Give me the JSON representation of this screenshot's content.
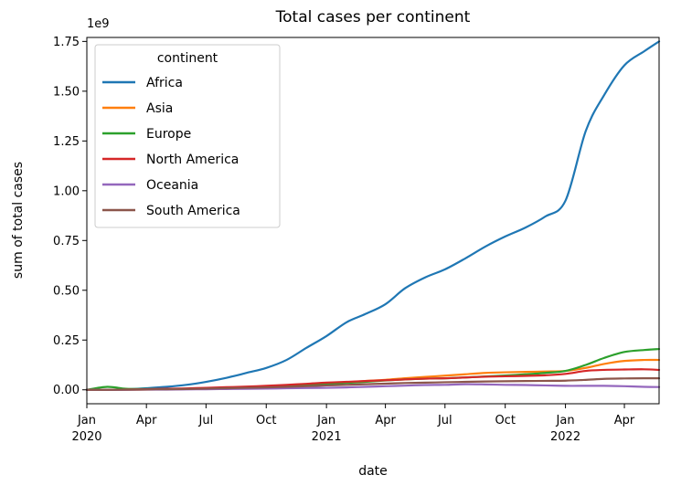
{
  "chart_data": {
    "type": "line",
    "title": "Total cases per continent",
    "xlabel": "date",
    "ylabel": "sum of total cases",
    "y_offset_text": "1e9",
    "ylim": [
      -0.07,
      1.77
    ],
    "y_ticks": [
      0.0,
      0.25,
      0.5,
      0.75,
      1.0,
      1.25,
      1.5,
      1.75
    ],
    "y_tick_labels": [
      "0.00",
      "0.25",
      "0.50",
      "0.75",
      "1.00",
      "1.25",
      "1.50",
      "1.75"
    ],
    "xlim": [
      "2020-01-01",
      "2022-05-24"
    ],
    "x_ticks": [
      {
        "date": "2020-01-01",
        "label": "Jan",
        "year": "2020"
      },
      {
        "date": "2020-04-01",
        "label": "Apr",
        "year": ""
      },
      {
        "date": "2020-07-01",
        "label": "Jul",
        "year": ""
      },
      {
        "date": "2020-10-01",
        "label": "Oct",
        "year": ""
      },
      {
        "date": "2021-01-01",
        "label": "Jan",
        "year": "2021"
      },
      {
        "date": "2021-04-01",
        "label": "Apr",
        "year": ""
      },
      {
        "date": "2021-07-01",
        "label": "Jul",
        "year": ""
      },
      {
        "date": "2021-10-01",
        "label": "Oct",
        "year": ""
      },
      {
        "date": "2022-01-01",
        "label": "Jan",
        "year": "2022"
      },
      {
        "date": "2022-04-01",
        "label": "Apr",
        "year": ""
      }
    ],
    "legend": {
      "title": "continent",
      "placement": "upper-left"
    },
    "grid": false,
    "x": [
      "2020-01-01",
      "2020-02-01",
      "2020-03-01",
      "2020-04-01",
      "2020-05-01",
      "2020-06-01",
      "2020-07-01",
      "2020-08-01",
      "2020-09-01",
      "2020-10-01",
      "2020-11-01",
      "2020-12-01",
      "2021-01-01",
      "2021-02-01",
      "2021-03-01",
      "2021-04-01",
      "2021-05-01",
      "2021-06-01",
      "2021-07-01",
      "2021-08-01",
      "2021-09-01",
      "2021-10-01",
      "2021-11-01",
      "2021-12-01",
      "2022-01-01",
      "2022-02-01",
      "2022-03-01",
      "2022-04-01",
      "2022-05-01",
      "2022-05-24"
    ],
    "series": [
      {
        "name": "Africa",
        "color": "#1f77b4",
        "values": [
          0.0,
          0.0,
          0.002,
          0.008,
          0.015,
          0.025,
          0.04,
          0.06,
          0.085,
          0.11,
          0.15,
          0.21,
          0.27,
          0.34,
          0.38,
          0.43,
          0.51,
          0.565,
          0.605,
          0.66,
          0.72,
          0.77,
          0.815,
          0.87,
          0.95,
          1.3,
          1.48,
          1.63,
          1.7,
          1.75
        ]
      },
      {
        "name": "Asia",
        "color": "#ff7f0e",
        "values": [
          0.0,
          0.0,
          0.0,
          0.001,
          0.002,
          0.004,
          0.006,
          0.009,
          0.012,
          0.016,
          0.02,
          0.026,
          0.033,
          0.038,
          0.044,
          0.05,
          0.058,
          0.065,
          0.071,
          0.078,
          0.085,
          0.088,
          0.09,
          0.092,
          0.095,
          0.11,
          0.13,
          0.145,
          0.15,
          0.15
        ]
      },
      {
        "name": "Europe",
        "color": "#2ca02c",
        "values": [
          0.0,
          0.015,
          0.005,
          0.004,
          0.004,
          0.005,
          0.006,
          0.007,
          0.008,
          0.012,
          0.018,
          0.025,
          0.03,
          0.035,
          0.04,
          0.047,
          0.052,
          0.056,
          0.058,
          0.062,
          0.067,
          0.072,
          0.078,
          0.085,
          0.095,
          0.125,
          0.16,
          0.19,
          0.2,
          0.205
        ]
      },
      {
        "name": "North America",
        "color": "#d62728",
        "values": [
          0.0,
          0.0,
          0.001,
          0.003,
          0.005,
          0.007,
          0.01,
          0.013,
          0.016,
          0.02,
          0.025,
          0.03,
          0.036,
          0.04,
          0.044,
          0.048,
          0.052,
          0.056,
          0.058,
          0.062,
          0.066,
          0.068,
          0.07,
          0.073,
          0.08,
          0.095,
          0.1,
          0.102,
          0.103,
          0.1
        ]
      },
      {
        "name": "Oceania",
        "color": "#9467bd",
        "values": [
          0.0,
          0.0,
          0.0,
          0.001,
          0.001,
          0.002,
          0.003,
          0.004,
          0.005,
          0.006,
          0.008,
          0.009,
          0.01,
          0.012,
          0.015,
          0.018,
          0.021,
          0.024,
          0.025,
          0.028,
          0.027,
          0.025,
          0.024,
          0.022,
          0.02,
          0.02,
          0.02,
          0.018,
          0.015,
          0.014
        ]
      },
      {
        "name": "South America",
        "color": "#8c564b",
        "values": [
          0.0,
          0.0,
          0.001,
          0.002,
          0.003,
          0.004,
          0.006,
          0.008,
          0.01,
          0.012,
          0.015,
          0.018,
          0.022,
          0.025,
          0.028,
          0.031,
          0.034,
          0.036,
          0.038,
          0.04,
          0.042,
          0.043,
          0.044,
          0.045,
          0.046,
          0.05,
          0.055,
          0.057,
          0.058,
          0.058
        ]
      }
    ]
  }
}
